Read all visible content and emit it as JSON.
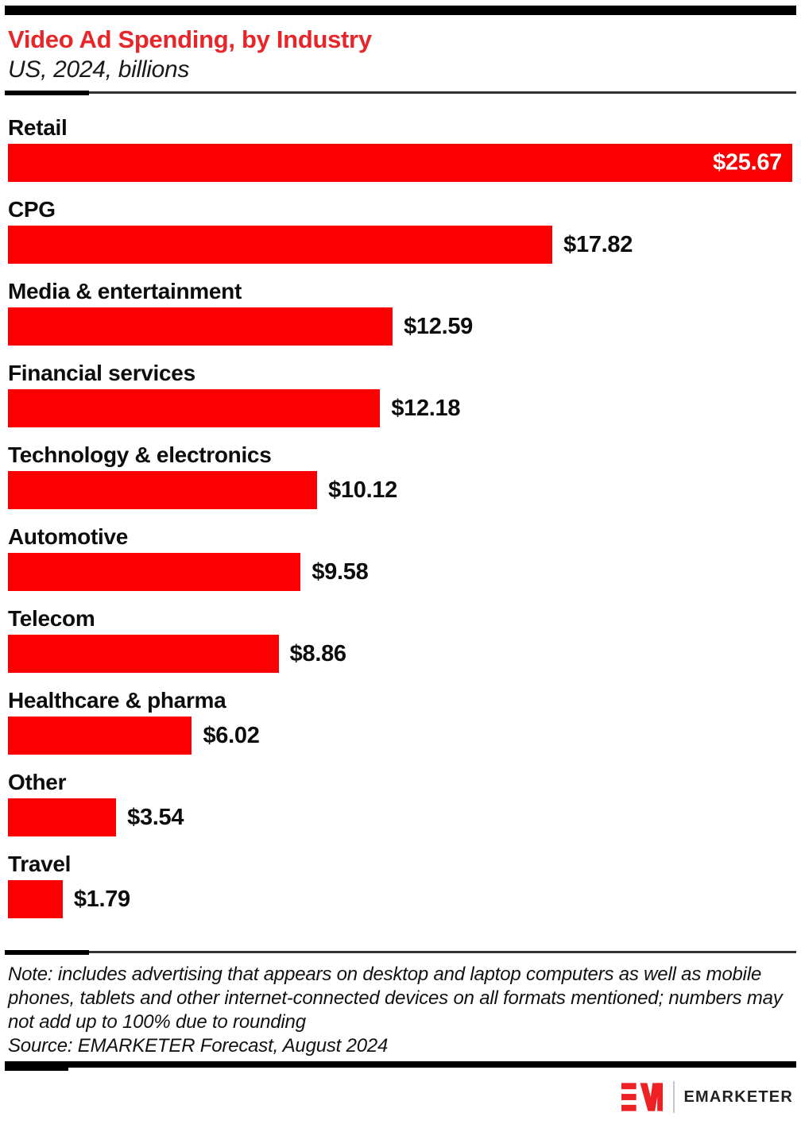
{
  "header": {
    "title": "Video Ad Spending, by Industry",
    "subtitle": "US, 2024, billions"
  },
  "chart_data": {
    "type": "bar",
    "orientation": "horizontal",
    "title": "Video Ad Spending, by Industry",
    "subtitle": "US, 2024, billions",
    "unit": "USD billions",
    "xlim": [
      0,
      25.67
    ],
    "grid": false,
    "legend": "none",
    "categories": [
      "Retail",
      "CPG",
      "Media & entertainment",
      "Financial services",
      "Technology & electronics",
      "Automotive",
      "Telecom",
      "Healthcare & pharma",
      "Other",
      "Travel"
    ],
    "values": [
      25.67,
      17.82,
      12.59,
      12.18,
      10.12,
      9.58,
      8.86,
      6.02,
      3.54,
      1.79
    ],
    "bars": [
      {
        "label": "Retail",
        "value": 25.67,
        "display": "$25.67",
        "label_inside": true
      },
      {
        "label": "CPG",
        "value": 17.82,
        "display": "$17.82",
        "label_inside": false
      },
      {
        "label": "Media & entertainment",
        "value": 12.59,
        "display": "$12.59",
        "label_inside": false
      },
      {
        "label": "Financial services",
        "value": 12.18,
        "display": "$12.18",
        "label_inside": false
      },
      {
        "label": "Technology & electronics",
        "value": 10.12,
        "display": "$10.12",
        "label_inside": false
      },
      {
        "label": "Automotive",
        "value": 9.58,
        "display": "$9.58",
        "label_inside": false
      },
      {
        "label": "Telecom",
        "value": 8.86,
        "display": "$8.86",
        "label_inside": false
      },
      {
        "label": "Healthcare & pharma",
        "value": 6.02,
        "display": "$6.02",
        "label_inside": false
      },
      {
        "label": "Other",
        "value": 3.54,
        "display": "$3.54",
        "label_inside": false
      },
      {
        "label": "Travel",
        "value": 1.79,
        "display": "$1.79",
        "label_inside": false
      }
    ]
  },
  "footer": {
    "note": "Note: includes advertising that appears on desktop and laptop computers as well as mobile phones, tablets and other internet-connected devices on all formats mentioned; numbers may not add up to 100% due to rounding",
    "source": "Source: EMARKETER Forecast, August 2024"
  },
  "branding": {
    "monogram": "EM",
    "logo_text": "EMARKETER"
  },
  "colors": {
    "bar_red": "#fb0000",
    "title_red": "#e8262a",
    "logo_red": "#ed2024",
    "text_black": "#111111"
  }
}
